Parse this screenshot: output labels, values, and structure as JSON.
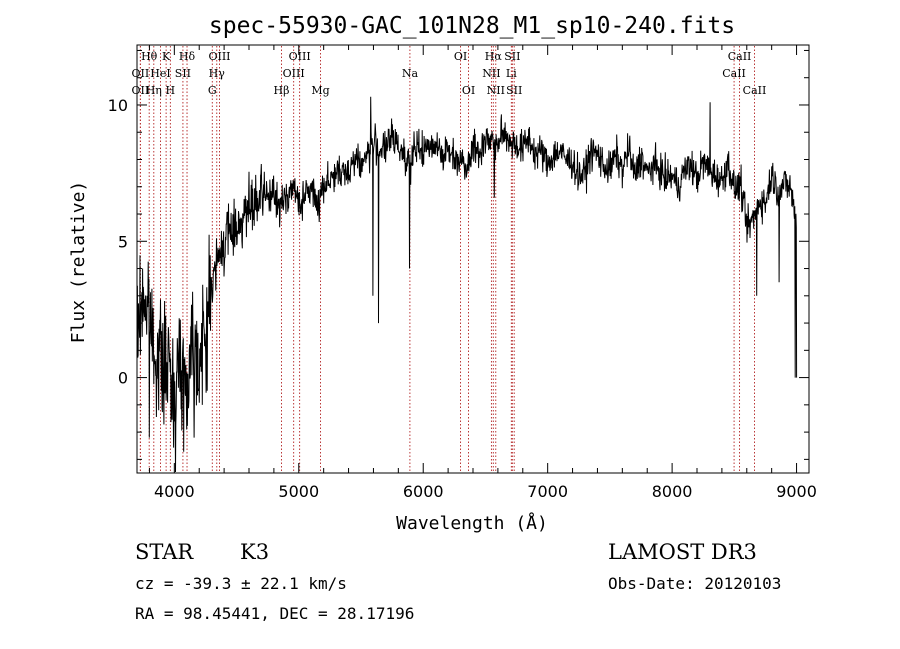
{
  "chart_data": {
    "type": "line",
    "title": "spec-55930-GAC_101N28_M1_sp10-240.fits",
    "xlabel": "Wavelength (Å)",
    "ylabel": "Flux (relative)",
    "xlim": [
      3700,
      9100
    ],
    "ylim": [
      -3.5,
      12.2
    ],
    "xticks": [
      4000,
      5000,
      6000,
      7000,
      8000,
      9000
    ],
    "yticks": [
      0,
      5,
      10
    ],
    "x_minor_step": 200,
    "y_minor_step": 1,
    "line_color": "#000000",
    "marker_color": "#b22222",
    "spectral_lines": [
      {
        "label": "OII",
        "wavelength": 3727,
        "row": 1
      },
      {
        "label": "Hθ",
        "wavelength": 3798,
        "row": 0
      },
      {
        "label": "OII",
        "wavelength": 3727,
        "row": 2
      },
      {
        "label": "HeI",
        "wavelength": 3889,
        "row": 1
      },
      {
        "label": "Hη",
        "wavelength": 3835,
        "row": 2
      },
      {
        "label": "K",
        "wavelength": 3934,
        "row": 0
      },
      {
        "label": "SII",
        "wavelength": 4069,
        "row": 1
      },
      {
        "label": "H",
        "wavelength": 3968,
        "row": 2
      },
      {
        "label": "Hδ",
        "wavelength": 4102,
        "row": 0
      },
      {
        "label": "OIII",
        "wavelength": 4363,
        "row": 0
      },
      {
        "label": "Hγ",
        "wavelength": 4341,
        "row": 1
      },
      {
        "label": "G",
        "wavelength": 4305,
        "row": 2
      },
      {
        "label": "Hβ",
        "wavelength": 4861,
        "row": 2
      },
      {
        "label": "OIII",
        "wavelength": 5007,
        "row": 0
      },
      {
        "label": "OIII",
        "wavelength": 4959,
        "row": 1
      },
      {
        "label": "Mg",
        "wavelength": 5175,
        "row": 2
      },
      {
        "label": "Na",
        "wavelength": 5893,
        "row": 1
      },
      {
        "label": "OI",
        "wavelength": 6300,
        "row": 0
      },
      {
        "label": "OI",
        "wavelength": 6364,
        "row": 2
      },
      {
        "label": "Hα",
        "wavelength": 6563,
        "row": 0
      },
      {
        "label": "NII",
        "wavelength": 6548,
        "row": 1
      },
      {
        "label": "NII",
        "wavelength": 6583,
        "row": 2
      },
      {
        "label": "SII",
        "wavelength": 6716,
        "row": 0
      },
      {
        "label": "Li",
        "wavelength": 6708,
        "row": 1
      },
      {
        "label": "SII",
        "wavelength": 6731,
        "row": 2
      },
      {
        "label": "CaII",
        "wavelength": 8542,
        "row": 0
      },
      {
        "label": "CaII",
        "wavelength": 8498,
        "row": 1
      },
      {
        "label": "CaII",
        "wavelength": 8662,
        "row": 2
      }
    ],
    "spectrum": {
      "x": [
        3700,
        3750,
        3800,
        3850,
        3900,
        3950,
        4000,
        4050,
        4100,
        4150,
        4200,
        4250,
        4300,
        4350,
        4400,
        4450,
        4500,
        4550,
        4600,
        4650,
        4700,
        4750,
        4800,
        4850,
        4900,
        4950,
        5000,
        5050,
        5100,
        5150,
        5200,
        5250,
        5300,
        5350,
        5400,
        5450,
        5500,
        5550,
        5600,
        5650,
        5700,
        5750,
        5800,
        5850,
        5900,
        5950,
        6000,
        6050,
        6100,
        6150,
        6200,
        6250,
        6300,
        6350,
        6400,
        6450,
        6500,
        6550,
        6600,
        6650,
        6700,
        6750,
        6800,
        6850,
        6900,
        6950,
        7000,
        7050,
        7100,
        7150,
        7200,
        7250,
        7300,
        7350,
        7400,
        7450,
        7500,
        7550,
        7600,
        7650,
        7700,
        7750,
        7800,
        7850,
        7900,
        7950,
        8000,
        8050,
        8100,
        8150,
        8200,
        8250,
        8300,
        8350,
        8400,
        8450,
        8500,
        8550,
        8600,
        8650,
        8700,
        8750,
        8800,
        8850,
        8900,
        8950,
        9000
      ],
      "y": [
        1.5,
        3.0,
        2.0,
        1.0,
        0.5,
        0.3,
        -0.5,
        0.5,
        -0.5,
        1.8,
        0.5,
        1.5,
        3.5,
        4.2,
        5.0,
        5.4,
        5.5,
        6.0,
        6.1,
        6.3,
        6.5,
        6.8,
        6.6,
        6.2,
        6.7,
        7.0,
        6.4,
        6.6,
        7.0,
        6.3,
        7.1,
        7.3,
        7.5,
        7.4,
        7.6,
        8.1,
        7.8,
        8.2,
        8.6,
        8.4,
        8.4,
        8.8,
        8.5,
        8.2,
        7.8,
        8.5,
        8.3,
        8.4,
        8.7,
        8.2,
        8.3,
        8.1,
        8.0,
        7.8,
        8.5,
        8.2,
        8.8,
        8.7,
        8.6,
        9.0,
        8.7,
        8.5,
        8.4,
        8.8,
        8.2,
        8.3,
        7.8,
        8.2,
        8.3,
        8.0,
        7.9,
        7.4,
        7.5,
        8.3,
        8.2,
        7.8,
        7.6,
        8.2,
        7.6,
        8.4,
        7.4,
        8.1,
        7.5,
        7.8,
        7.6,
        7.3,
        7.4,
        7.0,
        7.6,
        7.8,
        7.3,
        7.9,
        7.6,
        7.4,
        7.2,
        7.9,
        6.9,
        7.1,
        5.5,
        5.8,
        6.5,
        6.4,
        7.5,
        6.8,
        7.1,
        7.0,
        5.6
      ],
      "features": [
        {
          "x": 5577,
          "y": 10.3
        },
        {
          "x": 5595,
          "y": 3.0
        },
        {
          "x": 5640,
          "y": 2.0
        },
        {
          "x": 5890,
          "y": 4.0
        },
        {
          "x": 6570,
          "y": 6.6
        },
        {
          "x": 8305,
          "y": 10.1
        },
        {
          "x": 8680,
          "y": 3.0
        },
        {
          "x": 8860,
          "y": 3.5
        },
        {
          "x": 8990,
          "y": 0.0
        },
        {
          "x": 3800,
          "y": -2.2
        },
        {
          "x": 4160,
          "y": -2.2
        },
        {
          "x": 3745,
          "y": 4.0
        }
      ]
    }
  },
  "info": {
    "object_type": "STAR",
    "subclass": "K3",
    "survey": "LAMOST DR3",
    "cz": "cz = -39.3 ± 22.1 km/s",
    "obs_date": "Obs-Date: 20120103",
    "coords": "RA =  98.45441, DEC =  28.17196"
  }
}
